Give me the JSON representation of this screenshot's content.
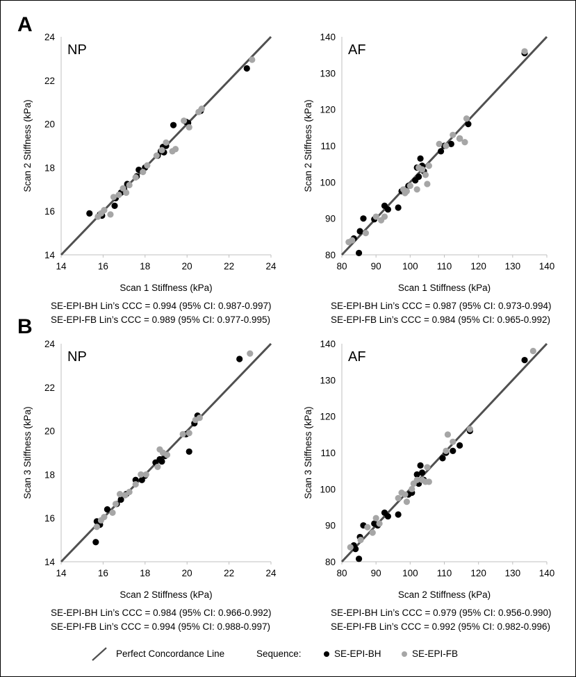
{
  "panels": {
    "A": "A",
    "B": "B"
  },
  "colors": {
    "bh": "#000000",
    "fb": "#a6a6a6",
    "line": "#505050",
    "axis": "#bfbfbf"
  },
  "legend": {
    "line_label": "Perfect Concordance Line",
    "sequence_label": "Sequence:",
    "bh_label": "SE-EPI-BH",
    "fb_label": "SE-EPI-FB"
  },
  "stats": {
    "a_np_bh": "SE-EPI-BH Lin’s CCC = 0.994 (95% CI: 0.987-0.997)",
    "a_np_fb": "SE-EPI-FB Lin’s CCC = 0.989 (95% CI: 0.977-0.995)",
    "a_af_bh": "SE-EPI-BH Lin’s CCC = 0.987 (95% CI: 0.973-0.994)",
    "a_af_fb": "SE-EPI-FB Lin’s CCC = 0.984 (95% CI: 0.965-0.992)",
    "b_np_bh": "SE-EPI-BH Lin’s CCC = 0.984 (95% CI: 0.966-0.992)",
    "b_np_fb": "SE-EPI-FB Lin’s CCC = 0.994 (95% CI: 0.988-0.997)",
    "b_af_bh": "SE-EPI-BH Lin’s CCC = 0.979 (95% CI: 0.956-0.990)",
    "b_af_fb": "SE-EPI-FB Lin’s CCC = 0.992 (95% CI: 0.982-0.996)"
  },
  "chart_data": [
    {
      "id": "a-np",
      "type": "scatter",
      "title": "NP",
      "xlabel": "Scan 1 Stiffness (kPa)",
      "ylabel": "Scan 2 Stiffness (kPa)",
      "xlim": [
        14,
        24
      ],
      "ylim": [
        14,
        24
      ],
      "xticks": [
        "14",
        "16",
        "18",
        "20",
        "22",
        "24"
      ],
      "yticks": [
        "14",
        "16",
        "18",
        "20",
        "22",
        "24"
      ],
      "series": [
        {
          "name": "SE-EPI-BH",
          "points": [
            [
              15.35,
              15.9
            ],
            [
              15.85,
              15.85
            ],
            [
              15.95,
              15.8
            ],
            [
              16.55,
              16.25
            ],
            [
              16.6,
              16.6
            ],
            [
              16.85,
              16.85
            ],
            [
              17.0,
              17.0
            ],
            [
              17.15,
              17.25
            ],
            [
              17.6,
              17.6
            ],
            [
              17.7,
              17.9
            ],
            [
              18.0,
              18.0
            ],
            [
              18.6,
              18.55
            ],
            [
              18.75,
              18.75
            ],
            [
              18.85,
              18.95
            ],
            [
              18.9,
              18.7
            ],
            [
              19.0,
              19.0
            ],
            [
              19.35,
              19.95
            ],
            [
              19.95,
              20.1
            ],
            [
              20.05,
              20.05
            ],
            [
              20.65,
              20.6
            ],
            [
              22.85,
              22.55
            ]
          ]
        },
        {
          "name": "SE-EPI-FB",
          "points": [
            [
              15.75,
              15.75
            ],
            [
              15.9,
              15.9
            ],
            [
              16.05,
              16.05
            ],
            [
              16.35,
              15.85
            ],
            [
              16.5,
              16.65
            ],
            [
              16.75,
              16.75
            ],
            [
              16.95,
              17.05
            ],
            [
              17.1,
              16.85
            ],
            [
              17.25,
              17.2
            ],
            [
              17.55,
              17.55
            ],
            [
              17.9,
              17.8
            ],
            [
              18.1,
              18.1
            ],
            [
              18.55,
              18.55
            ],
            [
              18.8,
              18.8
            ],
            [
              19.0,
              19.15
            ],
            [
              19.3,
              18.75
            ],
            [
              19.45,
              18.85
            ],
            [
              19.85,
              20.15
            ],
            [
              20.1,
              19.85
            ],
            [
              20.55,
              20.55
            ],
            [
              20.7,
              20.7
            ],
            [
              23.1,
              22.95
            ]
          ]
        }
      ]
    },
    {
      "id": "a-af",
      "type": "scatter",
      "title": "AF",
      "xlabel": "Scan 1 Stiffness (kPa)",
      "ylabel": "Scan 2 Stiffness (kPa)",
      "xlim": [
        80,
        140
      ],
      "ylim": [
        80,
        140
      ],
      "xticks": [
        "80",
        "90",
        "100",
        "110",
        "120",
        "130",
        "140"
      ],
      "yticks": [
        "80",
        "90",
        "100",
        "110",
        "120",
        "130",
        "140"
      ],
      "series": [
        {
          "name": "SE-EPI-BH",
          "points": [
            [
              83.5,
              84.5
            ],
            [
              85.0,
              80.5
            ],
            [
              85.3,
              86.5
            ],
            [
              86.3,
              90.0
            ],
            [
              89.5,
              89.8
            ],
            [
              92.5,
              93.5
            ],
            [
              93.5,
              92.5
            ],
            [
              96.5,
              93.0
            ],
            [
              97.5,
              97.5
            ],
            [
              99.5,
              99.0
            ],
            [
              101.5,
              100.5
            ],
            [
              102.0,
              104.0
            ],
            [
              102.5,
              101.5
            ],
            [
              103.0,
              106.5
            ],
            [
              103.5,
              104.5
            ],
            [
              104.0,
              103.0
            ],
            [
              109.0,
              108.5
            ],
            [
              110.0,
              110.0
            ],
            [
              112.0,
              110.5
            ],
            [
              114.5,
              112.0
            ],
            [
              117.0,
              116.0
            ],
            [
              133.5,
              135.5
            ]
          ]
        },
        {
          "name": "SE-EPI-FB",
          "points": [
            [
              82.0,
              83.5
            ],
            [
              83.0,
              84.0
            ],
            [
              87.0,
              86.0
            ],
            [
              90.0,
              90.5
            ],
            [
              91.5,
              89.5
            ],
            [
              92.5,
              90.5
            ],
            [
              98.0,
              98.0
            ],
            [
              98.5,
              97.0
            ],
            [
              99.0,
              97.5
            ],
            [
              100.0,
              99.0
            ],
            [
              102.0,
              98.0
            ],
            [
              102.5,
              104.0
            ],
            [
              103.5,
              103.5
            ],
            [
              104.5,
              102.0
            ],
            [
              105.0,
              99.5
            ],
            [
              105.5,
              104.5
            ],
            [
              108.5,
              110.5
            ],
            [
              110.5,
              110.0
            ],
            [
              112.5,
              113.0
            ],
            [
              114.5,
              112.0
            ],
            [
              116.0,
              111.0
            ],
            [
              116.5,
              117.5
            ],
            [
              133.5,
              136.0
            ]
          ]
        }
      ]
    },
    {
      "id": "b-np",
      "type": "scatter",
      "title": "NP",
      "xlabel": "Scan 2 Stiffness (kPa)",
      "ylabel": "Scan 3 Stiffness (kPa)",
      "xlim": [
        14,
        24
      ],
      "ylim": [
        14,
        24
      ],
      "xticks": [
        "14",
        "16",
        "18",
        "20",
        "22",
        "24"
      ],
      "yticks": [
        "14",
        "16",
        "18",
        "20",
        "22",
        "24"
      ],
      "series": [
        {
          "name": "SE-EPI-BH",
          "points": [
            [
              15.65,
              14.9
            ],
            [
              15.7,
              15.85
            ],
            [
              15.85,
              15.7
            ],
            [
              16.2,
              16.4
            ],
            [
              16.65,
              16.65
            ],
            [
              16.85,
              16.85
            ],
            [
              17.1,
              17.1
            ],
            [
              17.55,
              17.75
            ],
            [
              17.85,
              17.75
            ],
            [
              18.0,
              17.95
            ],
            [
              18.5,
              18.55
            ],
            [
              18.7,
              18.7
            ],
            [
              18.8,
              18.6
            ],
            [
              18.95,
              18.85
            ],
            [
              19.95,
              19.85
            ],
            [
              20.1,
              19.05
            ],
            [
              20.35,
              20.35
            ],
            [
              20.5,
              20.7
            ],
            [
              22.5,
              23.3
            ]
          ]
        },
        {
          "name": "SE-EPI-FB",
          "points": [
            [
              15.7,
              15.6
            ],
            [
              15.9,
              15.9
            ],
            [
              16.05,
              16.05
            ],
            [
              16.45,
              16.25
            ],
            [
              16.6,
              16.65
            ],
            [
              16.8,
              17.1
            ],
            [
              17.05,
              17.05
            ],
            [
              17.25,
              17.2
            ],
            [
              17.55,
              17.55
            ],
            [
              17.8,
              18.0
            ],
            [
              18.05,
              18.0
            ],
            [
              18.6,
              18.35
            ],
            [
              18.7,
              19.15
            ],
            [
              18.85,
              19.0
            ],
            [
              19.05,
              18.9
            ],
            [
              19.8,
              19.85
            ],
            [
              20.1,
              19.9
            ],
            [
              20.4,
              20.5
            ],
            [
              20.6,
              20.6
            ],
            [
              23.0,
              23.55
            ]
          ]
        }
      ]
    },
    {
      "id": "b-af",
      "type": "scatter",
      "title": "AF",
      "xlabel": "Scan 2 Stiffness (kPa)",
      "ylabel": "Scan 3 Stiffness (kPa)",
      "xlim": [
        80,
        140
      ],
      "ylim": [
        80,
        140
      ],
      "xticks": [
        "80",
        "90",
        "100",
        "110",
        "120",
        "130",
        "140"
      ],
      "yticks": [
        "80",
        "90",
        "100",
        "110",
        "120",
        "130",
        "140"
      ],
      "series": [
        {
          "name": "SE-EPI-BH",
          "points": [
            [
              83.5,
              84.5
            ],
            [
              84.0,
              83.5
            ],
            [
              85.0,
              80.8
            ],
            [
              85.3,
              86.8
            ],
            [
              86.3,
              90.0
            ],
            [
              89.5,
              90.5
            ],
            [
              90.5,
              90.0
            ],
            [
              92.5,
              93.5
            ],
            [
              93.5,
              92.5
            ],
            [
              96.5,
              93.0
            ],
            [
              99.5,
              98.5
            ],
            [
              100.5,
              99.0
            ],
            [
              102.0,
              104.0
            ],
            [
              102.5,
              101.5
            ],
            [
              103.0,
              106.5
            ],
            [
              103.5,
              104.5
            ],
            [
              104.0,
              102.5
            ],
            [
              109.5,
              108.5
            ],
            [
              110.5,
              110.0
            ],
            [
              112.5,
              110.5
            ],
            [
              114.5,
              112.0
            ],
            [
              117.5,
              116.0
            ],
            [
              133.5,
              135.5
            ]
          ]
        },
        {
          "name": "SE-EPI-FB",
          "points": [
            [
              82.5,
              84.0
            ],
            [
              85.5,
              86.0
            ],
            [
              87.5,
              89.5
            ],
            [
              89.0,
              88.0
            ],
            [
              90.0,
              92.0
            ],
            [
              91.0,
              90.5
            ],
            [
              96.5,
              97.5
            ],
            [
              97.5,
              99.0
            ],
            [
              98.5,
              98.5
            ],
            [
              99.0,
              96.5
            ],
            [
              100.5,
              100.0
            ],
            [
              101.0,
              101.5
            ],
            [
              102.0,
              102.5
            ],
            [
              103.5,
              102.5
            ],
            [
              104.5,
              102.0
            ],
            [
              105.0,
              106.0
            ],
            [
              105.5,
              102.0
            ],
            [
              110.5,
              110.5
            ],
            [
              111.0,
              115.0
            ],
            [
              112.5,
              113.0
            ],
            [
              117.5,
              116.5
            ],
            [
              136.0,
              138.0
            ]
          ]
        }
      ]
    }
  ]
}
